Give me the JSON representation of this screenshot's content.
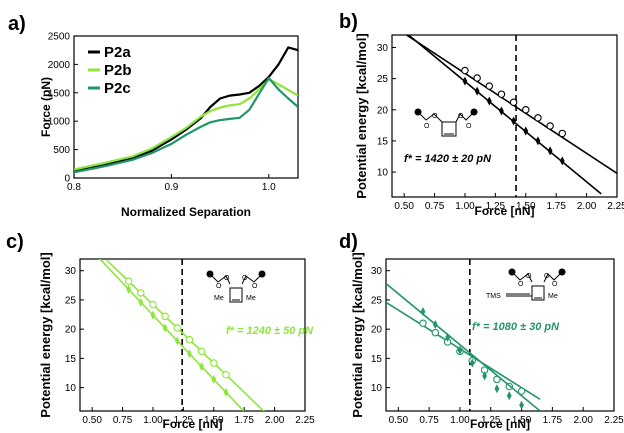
{
  "colors": {
    "P2a": "#000000",
    "P2b": "#8ee63c",
    "P2c": "#22956a",
    "b": "#000000",
    "c": "#8ee63c",
    "d": "#22956a"
  },
  "chart_data": [
    {
      "panel": "a)",
      "type": "line",
      "xlabel": "Normalized Separation",
      "ylabel": "Force (pN)",
      "xlim": [
        0.8,
        1.03
      ],
      "ylim": [
        0,
        2500
      ],
      "xticks": [
        "0.8",
        "0.9",
        "1.0"
      ],
      "xtick_values": [
        0.8,
        0.9,
        1.0
      ],
      "yticks": [
        "0",
        "500",
        "1000",
        "1500",
        "2000",
        "2500"
      ],
      "ytick_values": [
        0,
        500,
        1000,
        1500,
        2000,
        2500
      ],
      "legend_position": "top-left",
      "series": [
        {
          "name": "P2a",
          "color_key": "P2a",
          "x": [
            0.8,
            0.83,
            0.86,
            0.88,
            0.9,
            0.915,
            0.93,
            0.94,
            0.95,
            0.96,
            0.97,
            0.98,
            0.99,
            1.0,
            1.01,
            1.02,
            1.03
          ],
          "y": [
            120,
            220,
            350,
            480,
            680,
            850,
            1050,
            1250,
            1400,
            1450,
            1470,
            1500,
            1620,
            1780,
            2000,
            2300,
            2250
          ]
        },
        {
          "name": "P2b",
          "color_key": "P2b",
          "x": [
            0.8,
            0.83,
            0.86,
            0.88,
            0.9,
            0.915,
            0.93,
            0.94,
            0.95,
            0.96,
            0.97,
            0.98,
            0.99,
            1.0,
            1.01,
            1.02,
            1.03
          ],
          "y": [
            150,
            260,
            380,
            520,
            720,
            880,
            1080,
            1180,
            1240,
            1280,
            1300,
            1400,
            1560,
            1740,
            1650,
            1550,
            1450
          ]
        },
        {
          "name": "P2c",
          "color_key": "P2c",
          "x": [
            0.8,
            0.83,
            0.86,
            0.88,
            0.9,
            0.915,
            0.93,
            0.94,
            0.95,
            0.96,
            0.97,
            0.98,
            0.99,
            1.0,
            1.01,
            1.02,
            1.03
          ],
          "y": [
            100,
            200,
            320,
            440,
            600,
            760,
            900,
            980,
            1020,
            1040,
            1060,
            1200,
            1480,
            1760,
            1560,
            1400,
            1250
          ]
        }
      ]
    },
    {
      "panel": "b)",
      "type": "scatter",
      "xlabel": "Force [nN]",
      "ylabel": "Potential energy [kcal/mol]",
      "xlim": [
        0.4,
        2.25
      ],
      "ylim": [
        6,
        32
      ],
      "xticks": [
        "0.50",
        "0.75",
        "1.00",
        "1.25",
        "1.50",
        "1.75",
        "2.00",
        "2.25"
      ],
      "xtick_values": [
        0.5,
        0.75,
        1.0,
        1.25,
        1.5,
        1.75,
        2.0,
        2.25
      ],
      "yticks": [
        "10",
        "15",
        "20",
        "25",
        "30"
      ],
      "ytick_values": [
        10,
        15,
        20,
        25,
        30
      ],
      "vline": 1.42,
      "annotation": "f* = 1420 ± 20 pN",
      "color_key": "b",
      "series": [
        {
          "marker": "open-circle",
          "x": [
            1.0,
            1.1,
            1.2,
            1.3,
            1.4,
            1.5,
            1.6,
            1.7,
            1.8
          ],
          "y": [
            26.3,
            25.1,
            23.8,
            22.5,
            21.2,
            20.0,
            18.7,
            17.4,
            16.2
          ],
          "fit_x": [
            0.45,
            2.25
          ],
          "fit_y": [
            32.9,
            9.8
          ]
        },
        {
          "marker": "filled-diamond",
          "x": [
            1.0,
            1.1,
            1.2,
            1.3,
            1.4,
            1.5,
            1.6,
            1.7,
            1.8
          ],
          "y": [
            24.6,
            23.0,
            21.4,
            19.8,
            18.2,
            16.6,
            15.0,
            13.4,
            11.8
          ],
          "fit_x": [
            0.4,
            2.12
          ],
          "fit_y": [
            34.2,
            6.5
          ]
        }
      ]
    },
    {
      "panel": "c)",
      "type": "scatter",
      "xlabel": "Force [nN]",
      "ylabel": "Potential energy [kcal/mol]",
      "xlim": [
        0.4,
        2.25
      ],
      "ylim": [
        6,
        32
      ],
      "xticks": [
        "0.50",
        "0.75",
        "1.00",
        "1.25",
        "1.50",
        "1.75",
        "2.00",
        "2.25"
      ],
      "xtick_values": [
        0.5,
        0.75,
        1.0,
        1.25,
        1.5,
        1.75,
        2.0,
        2.25
      ],
      "yticks": [
        "10",
        "15",
        "20",
        "25",
        "30"
      ],
      "ytick_values": [
        10,
        15,
        20,
        25,
        30
      ],
      "vline": 1.24,
      "annotation": "f* = 1240 ± 50 pN",
      "color_key": "c",
      "series": [
        {
          "marker": "open-circle",
          "x": [
            0.8,
            0.9,
            1.0,
            1.1,
            1.2,
            1.3,
            1.4,
            1.5,
            1.6
          ],
          "y": [
            28.2,
            26.2,
            24.2,
            22.2,
            20.2,
            18.2,
            16.2,
            14.2,
            12.2
          ],
          "fit_x": [
            0.62,
            1.95
          ],
          "fit_y": [
            31.8,
            5.2
          ]
        },
        {
          "marker": "filled-diamond",
          "x": [
            0.8,
            0.9,
            1.0,
            1.1,
            1.2,
            1.3,
            1.4,
            1.5,
            1.6
          ],
          "y": [
            26.8,
            24.6,
            22.4,
            20.2,
            18.0,
            15.8,
            13.6,
            11.4,
            9.2
          ],
          "fit_x": [
            0.55,
            1.75
          ],
          "fit_y": [
            32.3,
            5.9
          ]
        }
      ]
    },
    {
      "panel": "d)",
      "type": "scatter",
      "xlabel": "Force [nN]",
      "ylabel": "Potential energy [kcal/mol]",
      "xlim": [
        0.4,
        2.25
      ],
      "ylim": [
        6,
        32
      ],
      "xticks": [
        "0.50",
        "0.75",
        "1.00",
        "1.25",
        "1.50",
        "1.75",
        "2.00",
        "2.25"
      ],
      "xtick_values": [
        0.5,
        0.75,
        1.0,
        1.25,
        1.5,
        1.75,
        2.0,
        2.25
      ],
      "yticks": [
        "10",
        "15",
        "20",
        "25",
        "30"
      ],
      "ytick_values": [
        10,
        15,
        20,
        25,
        30
      ],
      "vline": 1.08,
      "annotation": "f* = 1080 ± 30 pN",
      "color_key": "d",
      "series": [
        {
          "marker": "open-circle",
          "x": [
            0.7,
            0.8,
            0.9,
            1.0,
            1.1,
            1.2,
            1.3,
            1.4,
            1.5
          ],
          "y": [
            21.0,
            19.4,
            17.8,
            16.2,
            14.6,
            13.0,
            11.4,
            10.2,
            9.4
          ],
          "fit_x": [
            0.4,
            1.65
          ],
          "fit_y": [
            24.6,
            8.0
          ]
        },
        {
          "marker": "filled-diamond",
          "x": [
            0.7,
            0.8,
            0.9,
            1.0,
            1.1,
            1.2,
            1.3,
            1.4,
            1.5
          ],
          "y": [
            23.0,
            20.8,
            18.6,
            16.4,
            14.2,
            12.0,
            9.8,
            8.6,
            7.0
          ],
          "fit_x": [
            0.4,
            1.65
          ],
          "fit_y": [
            27.8,
            6.0
          ]
        }
      ]
    }
  ],
  "molecules": {
    "b": {
      "labels": [
        "O",
        "O",
        "O",
        "O"
      ]
    },
    "c": {
      "labels": [
        "O",
        "O",
        "O",
        "O",
        "Me",
        "Me"
      ]
    },
    "d": {
      "labels": [
        "O",
        "O",
        "O",
        "O",
        "TMS",
        "Me"
      ]
    }
  }
}
